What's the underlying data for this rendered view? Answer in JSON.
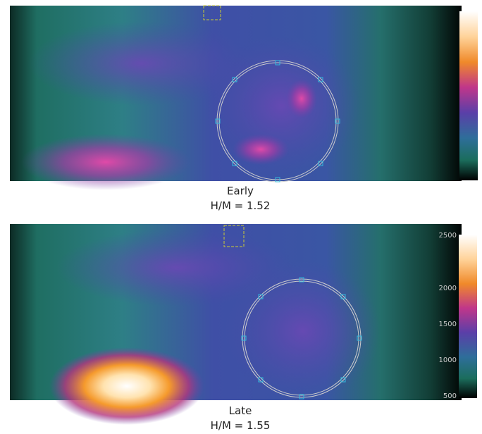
{
  "panels": [
    {
      "title": "Early",
      "metric": "H/M = 1.52"
    },
    {
      "title": "Late",
      "metric": "H/M = 1.55",
      "colorbar_ticks": [
        "2500",
        "2000",
        "1500",
        "1000",
        "500"
      ]
    }
  ]
}
